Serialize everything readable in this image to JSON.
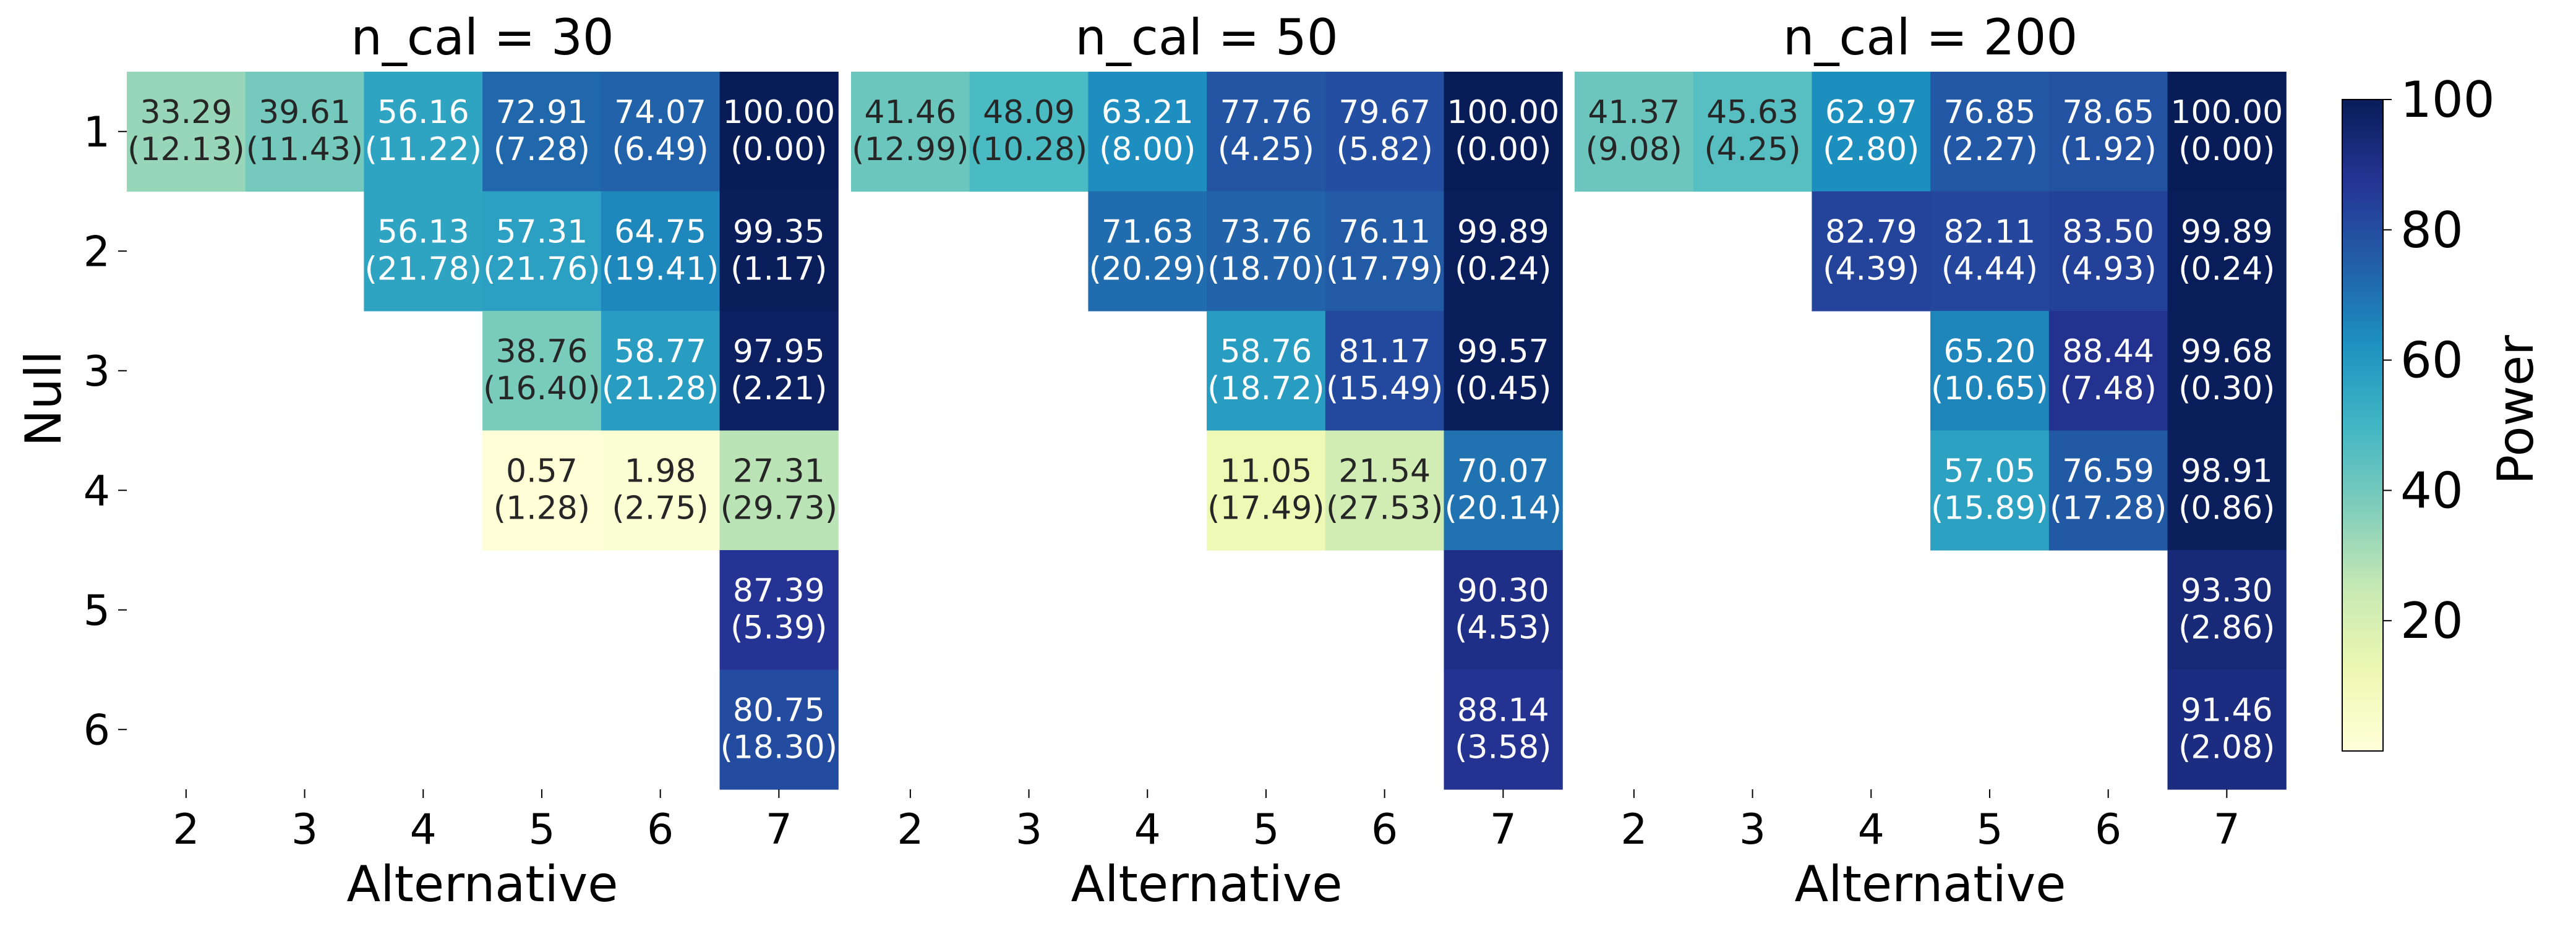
{
  "chart_data": {
    "type": "heatmap",
    "ylabel": "Null",
    "xlabel": "Alternative",
    "x_categories": [
      "2",
      "3",
      "4",
      "5",
      "6",
      "7"
    ],
    "y_categories": [
      "1",
      "2",
      "3",
      "4",
      "5",
      "6"
    ],
    "colorbar": {
      "label": "Power",
      "range": [
        0,
        100
      ],
      "ticks": [
        "20",
        "40",
        "60",
        "80",
        "100"
      ],
      "colormap": "YlGnBu"
    },
    "panels": [
      {
        "title": "n_cal = 30",
        "cells": [
          {
            "null": "1",
            "alt": "2",
            "value": 33.29,
            "label": "33.29",
            "sd": "(12.13)"
          },
          {
            "null": "1",
            "alt": "3",
            "value": 39.61,
            "label": "39.61",
            "sd": "(11.43)"
          },
          {
            "null": "1",
            "alt": "4",
            "value": 56.16,
            "label": "56.16",
            "sd": "(11.22)"
          },
          {
            "null": "1",
            "alt": "5",
            "value": 72.91,
            "label": "72.91",
            "sd": "(7.28)"
          },
          {
            "null": "1",
            "alt": "6",
            "value": 74.07,
            "label": "74.07",
            "sd": "(6.49)"
          },
          {
            "null": "1",
            "alt": "7",
            "value": 100.0,
            "label": "100.00",
            "sd": "(0.00)"
          },
          {
            "null": "2",
            "alt": "4",
            "value": 56.13,
            "label": "56.13",
            "sd": "(21.78)"
          },
          {
            "null": "2",
            "alt": "5",
            "value": 57.31,
            "label": "57.31",
            "sd": "(21.76)"
          },
          {
            "null": "2",
            "alt": "6",
            "value": 64.75,
            "label": "64.75",
            "sd": "(19.41)"
          },
          {
            "null": "2",
            "alt": "7",
            "value": 99.35,
            "label": "99.35",
            "sd": "(1.17)"
          },
          {
            "null": "3",
            "alt": "5",
            "value": 38.76,
            "label": "38.76",
            "sd": "(16.40)"
          },
          {
            "null": "3",
            "alt": "6",
            "value": 58.77,
            "label": "58.77",
            "sd": "(21.28)"
          },
          {
            "null": "3",
            "alt": "7",
            "value": 97.95,
            "label": "97.95",
            "sd": "(2.21)"
          },
          {
            "null": "4",
            "alt": "5",
            "value": 0.57,
            "label": "0.57",
            "sd": "(1.28)"
          },
          {
            "null": "4",
            "alt": "6",
            "value": 1.98,
            "label": "1.98",
            "sd": "(2.75)"
          },
          {
            "null": "4",
            "alt": "7",
            "value": 27.31,
            "label": "27.31",
            "sd": "(29.73)"
          },
          {
            "null": "5",
            "alt": "7",
            "value": 87.39,
            "label": "87.39",
            "sd": "(5.39)"
          },
          {
            "null": "6",
            "alt": "7",
            "value": 80.75,
            "label": "80.75",
            "sd": "(18.30)"
          }
        ]
      },
      {
        "title": "n_cal = 50",
        "cells": [
          {
            "null": "1",
            "alt": "2",
            "value": 41.46,
            "label": "41.46",
            "sd": "(12.99)"
          },
          {
            "null": "1",
            "alt": "3",
            "value": 48.09,
            "label": "48.09",
            "sd": "(10.28)"
          },
          {
            "null": "1",
            "alt": "4",
            "value": 63.21,
            "label": "63.21",
            "sd": "(8.00)"
          },
          {
            "null": "1",
            "alt": "5",
            "value": 77.76,
            "label": "77.76",
            "sd": "(4.25)"
          },
          {
            "null": "1",
            "alt": "6",
            "value": 79.67,
            "label": "79.67",
            "sd": "(5.82)"
          },
          {
            "null": "1",
            "alt": "7",
            "value": 100.0,
            "label": "100.00",
            "sd": "(0.00)"
          },
          {
            "null": "2",
            "alt": "4",
            "value": 71.63,
            "label": "71.63",
            "sd": "(20.29)"
          },
          {
            "null": "2",
            "alt": "5",
            "value": 73.76,
            "label": "73.76",
            "sd": "(18.70)"
          },
          {
            "null": "2",
            "alt": "6",
            "value": 76.11,
            "label": "76.11",
            "sd": "(17.79)"
          },
          {
            "null": "2",
            "alt": "7",
            "value": 99.89,
            "label": "99.89",
            "sd": "(0.24)"
          },
          {
            "null": "3",
            "alt": "5",
            "value": 58.76,
            "label": "58.76",
            "sd": "(18.72)"
          },
          {
            "null": "3",
            "alt": "6",
            "value": 81.17,
            "label": "81.17",
            "sd": "(15.49)"
          },
          {
            "null": "3",
            "alt": "7",
            "value": 99.57,
            "label": "99.57",
            "sd": "(0.45)"
          },
          {
            "null": "4",
            "alt": "5",
            "value": 11.05,
            "label": "11.05",
            "sd": "(17.49)"
          },
          {
            "null": "4",
            "alt": "6",
            "value": 21.54,
            "label": "21.54",
            "sd": "(27.53)"
          },
          {
            "null": "4",
            "alt": "7",
            "value": 70.07,
            "label": "70.07",
            "sd": "(20.14)"
          },
          {
            "null": "5",
            "alt": "7",
            "value": 90.3,
            "label": "90.30",
            "sd": "(4.53)"
          },
          {
            "null": "6",
            "alt": "7",
            "value": 88.14,
            "label": "88.14",
            "sd": "(3.58)"
          }
        ]
      },
      {
        "title": "n_cal = 200",
        "cells": [
          {
            "null": "1",
            "alt": "2",
            "value": 41.37,
            "label": "41.37",
            "sd": "(9.08)"
          },
          {
            "null": "1",
            "alt": "3",
            "value": 45.63,
            "label": "45.63",
            "sd": "(4.25)"
          },
          {
            "null": "1",
            "alt": "4",
            "value": 62.97,
            "label": "62.97",
            "sd": "(2.80)"
          },
          {
            "null": "1",
            "alt": "5",
            "value": 76.85,
            "label": "76.85",
            "sd": "(2.27)"
          },
          {
            "null": "1",
            "alt": "6",
            "value": 78.65,
            "label": "78.65",
            "sd": "(1.92)"
          },
          {
            "null": "1",
            "alt": "7",
            "value": 100.0,
            "label": "100.00",
            "sd": "(0.00)"
          },
          {
            "null": "2",
            "alt": "4",
            "value": 82.79,
            "label": "82.79",
            "sd": "(4.39)"
          },
          {
            "null": "2",
            "alt": "5",
            "value": 82.11,
            "label": "82.11",
            "sd": "(4.44)"
          },
          {
            "null": "2",
            "alt": "6",
            "value": 83.5,
            "label": "83.50",
            "sd": "(4.93)"
          },
          {
            "null": "2",
            "alt": "7",
            "value": 99.89,
            "label": "99.89",
            "sd": "(0.24)"
          },
          {
            "null": "3",
            "alt": "5",
            "value": 65.2,
            "label": "65.20",
            "sd": "(10.65)"
          },
          {
            "null": "3",
            "alt": "6",
            "value": 88.44,
            "label": "88.44",
            "sd": "(7.48)"
          },
          {
            "null": "3",
            "alt": "7",
            "value": 99.68,
            "label": "99.68",
            "sd": "(0.30)"
          },
          {
            "null": "4",
            "alt": "5",
            "value": 57.05,
            "label": "57.05",
            "sd": "(15.89)"
          },
          {
            "null": "4",
            "alt": "6",
            "value": 76.59,
            "label": "76.59",
            "sd": "(17.28)"
          },
          {
            "null": "4",
            "alt": "7",
            "value": 98.91,
            "label": "98.91",
            "sd": "(0.86)"
          },
          {
            "null": "5",
            "alt": "7",
            "value": 93.3,
            "label": "93.30",
            "sd": "(2.86)"
          },
          {
            "null": "6",
            "alt": "7",
            "value": 91.46,
            "label": "91.46",
            "sd": "(2.08)"
          }
        ]
      }
    ]
  }
}
